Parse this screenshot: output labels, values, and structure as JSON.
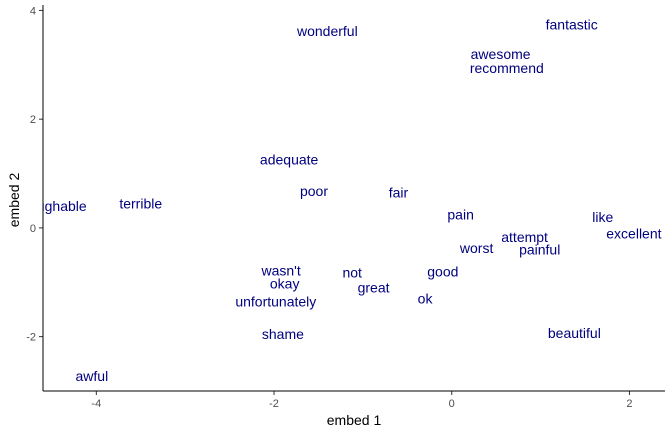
{
  "chart_data": {
    "type": "scatter",
    "title": "",
    "xlabel": "embed 1",
    "ylabel": "embed 2",
    "xlim": [
      -4.6,
      2.4
    ],
    "ylim": [
      -3.0,
      4.1
    ],
    "xticks": [
      {
        "value": -4,
        "label": "-4"
      },
      {
        "value": -2,
        "label": "-2"
      },
      {
        "value": 0,
        "label": "0"
      },
      {
        "value": 2,
        "label": "2"
      }
    ],
    "yticks": [
      {
        "value": -2,
        "label": "-2"
      },
      {
        "value": 0,
        "label": "0"
      },
      {
        "value": 2,
        "label": "2"
      },
      {
        "value": 4,
        "label": "4"
      }
    ],
    "label_color": "#00007f",
    "points": [
      {
        "label": "wonderful",
        "x": -1.4,
        "y": 3.62
      },
      {
        "label": "fantastic",
        "x": 1.35,
        "y": 3.74
      },
      {
        "label": "awesome",
        "x": 0.55,
        "y": 3.2
      },
      {
        "label": "recommend",
        "x": 0.62,
        "y": 2.94
      },
      {
        "label": "adequate",
        "x": -1.83,
        "y": 1.26
      },
      {
        "label": "poor",
        "x": -1.55,
        "y": 0.68
      },
      {
        "label": "fair",
        "x": -0.6,
        "y": 0.65
      },
      {
        "label": "laughable",
        "x": -4.45,
        "y": 0.4
      },
      {
        "label": "terrible",
        "x": -3.5,
        "y": 0.45
      },
      {
        "label": "pain",
        "x": 0.1,
        "y": 0.25
      },
      {
        "label": "like",
        "x": 1.7,
        "y": 0.2
      },
      {
        "label": "excellent",
        "x": 2.05,
        "y": -0.1
      },
      {
        "label": "attempt",
        "x": 0.82,
        "y": -0.17
      },
      {
        "label": "worst",
        "x": 0.28,
        "y": -0.37
      },
      {
        "label": "painful",
        "x": 0.99,
        "y": -0.4
      },
      {
        "label": "wasn't",
        "x": -1.92,
        "y": -0.78
      },
      {
        "label": "not",
        "x": -1.12,
        "y": -0.82
      },
      {
        "label": "good",
        "x": -0.1,
        "y": -0.8
      },
      {
        "label": "okay",
        "x": -1.88,
        "y": -1.02
      },
      {
        "label": "great",
        "x": -0.88,
        "y": -1.1
      },
      {
        "label": "unfortunately",
        "x": -1.98,
        "y": -1.35
      },
      {
        "label": "ok",
        "x": -0.3,
        "y": -1.3
      },
      {
        "label": "shame",
        "x": -1.9,
        "y": -1.95
      },
      {
        "label": "beautiful",
        "x": 1.38,
        "y": -1.93
      },
      {
        "label": "awful",
        "x": -4.05,
        "y": -2.72
      }
    ]
  }
}
